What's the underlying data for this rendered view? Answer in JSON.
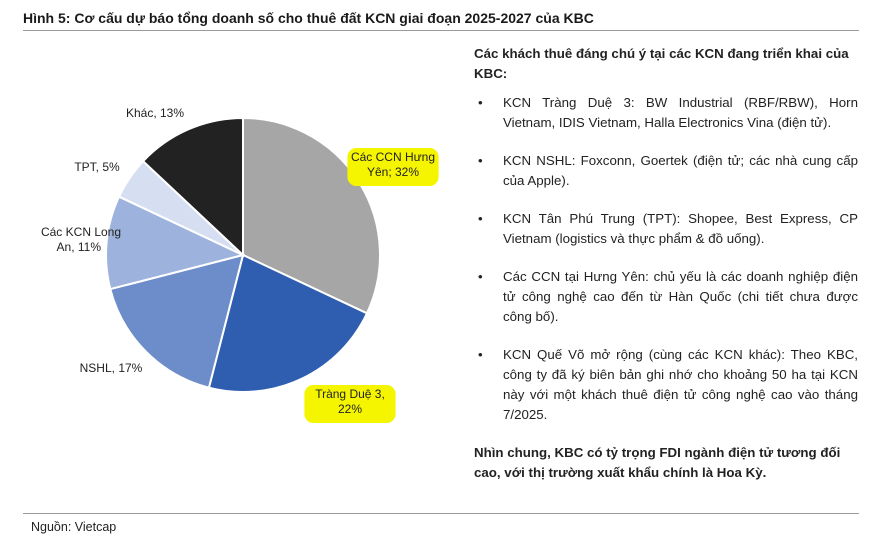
{
  "figure": {
    "title": "Hình 5: Cơ cấu dự báo tổng doanh số cho thuê đất KCN giai đoạn 2025-2027 của KBC",
    "source": "Nguồn: Vietcap"
  },
  "chart_data": {
    "type": "pie",
    "title": "",
    "slices": [
      {
        "label_lines": [
          "Các CCN Hưng",
          "Yên; 32%"
        ],
        "value": 32,
        "color": "#a6a6a6",
        "highlighted": true
      },
      {
        "label_lines": [
          "Tràng Duệ 3,",
          "22%"
        ],
        "value": 22,
        "color": "#2f5eb0",
        "highlighted": true
      },
      {
        "label_lines": [
          "NSHL, 17%"
        ],
        "value": 17,
        "color": "#6c8dc9",
        "highlighted": false
      },
      {
        "label_lines": [
          "Các KCN Long",
          "An, 11%"
        ],
        "value": 11,
        "color": "#9db2dc",
        "highlighted": false
      },
      {
        "label_lines": [
          "TPT, 5%"
        ],
        "value": 5,
        "color": "#d5dff1",
        "highlighted": false
      },
      {
        "label_lines": [
          "Khác, 13%"
        ],
        "value": 13,
        "color": "#222222",
        "highlighted": false
      }
    ],
    "legend": "none"
  },
  "panel": {
    "heading": "Các khách thuê đáng chú ý tại các KCN đang triển khai của KBC:",
    "bullet_symbol": "•",
    "bullets": [
      "KCN Tràng Duệ 3: BW Industrial (RBF/RBW), Horn Vietnam, IDIS Vietnam, Halla Electronics Vina (điện tử).",
      "KCN NSHL: Foxconn, Goertek (điện tử; các nhà cung cấp của Apple).",
      "KCN Tân Phú Trung (TPT): Shopee, Best Express, CP Vietnam (logistics và thực phẩm & đồ uống).",
      "Các CCN tại Hưng Yên: chủ yếu là các doanh nghiệp điện tử công nghệ cao đến từ Hàn Quốc (chi tiết chưa được công bố).",
      "KCN Quế Võ mở rộng (cùng các KCN khác): Theo KBC, công ty đã ký biên bản ghi nhớ cho khoảng 50 ha tại KCN này với một khách thuê điện tử công nghệ cao vào tháng 7/2025."
    ],
    "conclusion": "Nhìn chung, KBC có tỷ trọng FDI ngành điện tử tương đối cao, với thị trường xuất khẩu chính là Hoa Kỳ."
  }
}
